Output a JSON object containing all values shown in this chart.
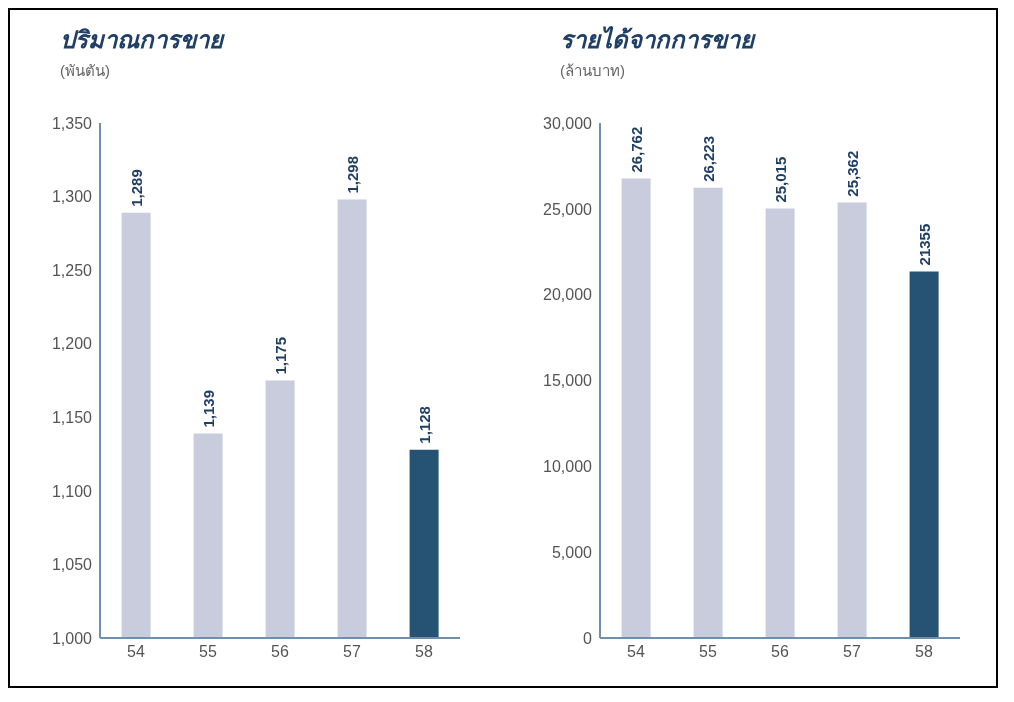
{
  "chart_data": [
    {
      "type": "bar",
      "title": "ปริมาณการขาย",
      "subtitle": "(พันตัน)",
      "categories": [
        "54",
        "55",
        "56",
        "57",
        "58"
      ],
      "values": [
        1289,
        1139,
        1175,
        1298,
        1128
      ],
      "colors": [
        "#c8ccdc",
        "#c8ccdc",
        "#c8ccdc",
        "#c8ccdc",
        "#265274"
      ],
      "value_labels": [
        "1,289",
        "1,139",
        "1,175",
        "1,298",
        "1,128"
      ],
      "ylim": [
        1000,
        1350
      ],
      "yticks": [
        {
          "value": 1000,
          "label": "1,000"
        },
        {
          "value": 1050,
          "label": "1,050"
        },
        {
          "value": 1100,
          "label": "1,100"
        },
        {
          "value": 1150,
          "label": "1,150"
        },
        {
          "value": 1200,
          "label": "1,200"
        },
        {
          "value": 1250,
          "label": "1,250"
        },
        {
          "value": 1300,
          "label": "1,300"
        },
        {
          "value": 1350,
          "label": "1,350"
        }
      ],
      "grid": false
    },
    {
      "type": "bar",
      "title": "รายได้จากการขาย",
      "subtitle": "(ล้านบาท)",
      "categories": [
        "54",
        "55",
        "56",
        "57",
        "58"
      ],
      "values": [
        26762,
        26223,
        25015,
        25362,
        21355
      ],
      "colors": [
        "#c8ccdc",
        "#c8ccdc",
        "#c8ccdc",
        "#c8ccdc",
        "#265274"
      ],
      "value_labels": [
        "26,762",
        "26,223",
        "25,015",
        "25,362",
        "21355"
      ],
      "ylim": [
        0,
        30000
      ],
      "yticks": [
        0,
        {
          "value": 5000,
          "label": "5,000"
        },
        {
          "value": 10000,
          "label": "10,000"
        },
        {
          "value": 15000,
          "label": "15,000"
        },
        {
          "value": 20000,
          "label": "20,000"
        },
        {
          "value": 25000,
          "label": "25,000"
        },
        {
          "value": 30000,
          "label": "30,000"
        }
      ],
      "grid": false
    }
  ]
}
